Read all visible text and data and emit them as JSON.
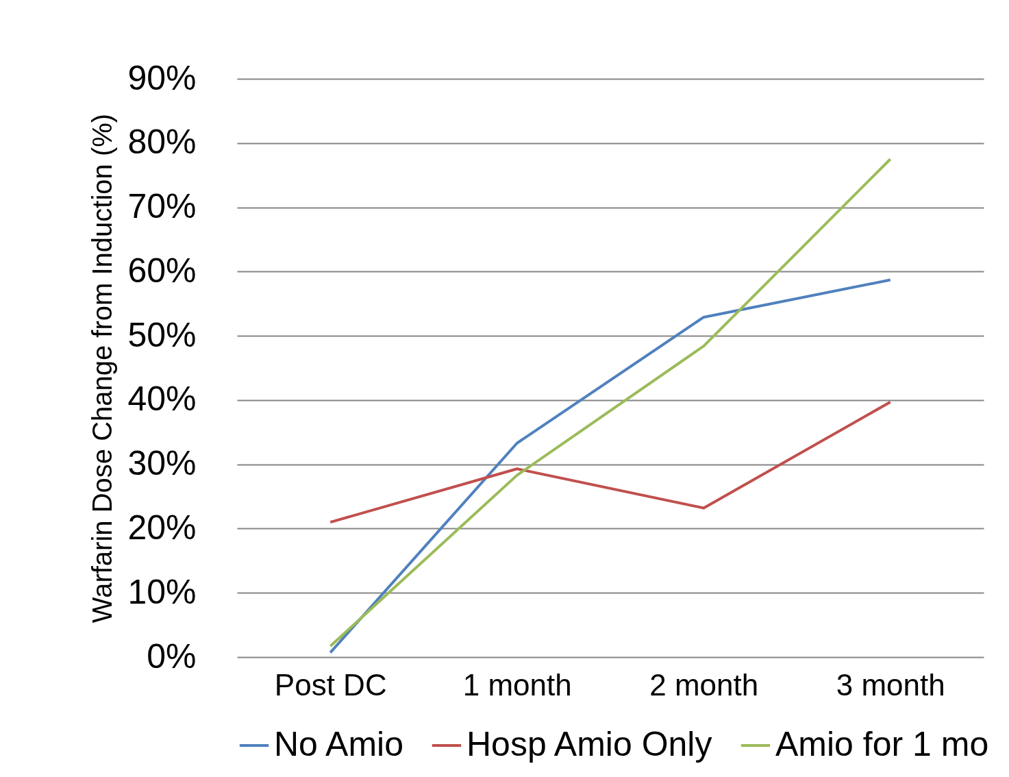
{
  "chart_data": {
    "type": "line",
    "ylabel": "Warfarin Dose Change from Induction (%)",
    "categories": [
      "Post DC",
      "1 month",
      "2 month",
      "3 month"
    ],
    "series": [
      {
        "name": "No Amio",
        "color": "#4f81bd",
        "values": [
          0.7,
          33.3,
          52.9,
          58.7
        ]
      },
      {
        "name": "Hosp Amio Only",
        "color": "#c0504d",
        "values": [
          21.0,
          29.3,
          23.2,
          39.7
        ]
      },
      {
        "name": "Amio for 1 mo",
        "color": "#9bbb59",
        "values": [
          1.7,
          28.3,
          48.4,
          77.5
        ]
      }
    ],
    "ylim": [
      0,
      90
    ],
    "yticks": [
      {
        "value": 0,
        "label": "0%"
      },
      {
        "value": 10,
        "label": "10%"
      },
      {
        "value": 20,
        "label": "20%"
      },
      {
        "value": 30,
        "label": "30%"
      },
      {
        "value": 40,
        "label": "40%"
      },
      {
        "value": 50,
        "label": "50%"
      },
      {
        "value": 60,
        "label": "60%"
      },
      {
        "value": 70,
        "label": "70%"
      },
      {
        "value": 80,
        "label": "80%"
      },
      {
        "value": 90,
        "label": "90%"
      }
    ],
    "grid": "y",
    "legend": "bottom",
    "marker": "none",
    "line_style": "solid"
  }
}
